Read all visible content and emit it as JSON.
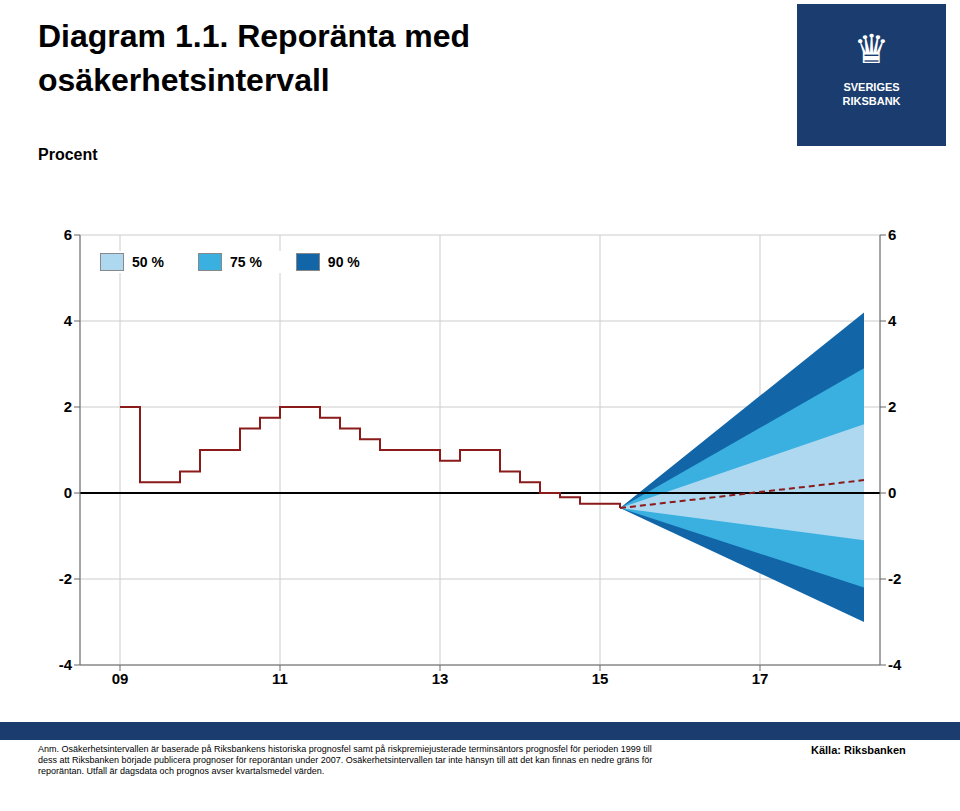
{
  "chart_data": {
    "type": "fan",
    "title": "Diagram 1.1. Reporänta med\nosäkerhetsintervall",
    "subtitle": "Procent",
    "xlim": [
      2008.5,
      2018.5
    ],
    "xticks": [
      {
        "value": 2009,
        "label": "09"
      },
      {
        "value": 2011,
        "label": "11"
      },
      {
        "value": 2013,
        "label": "13"
      },
      {
        "value": 2015,
        "label": "15"
      },
      {
        "value": 2017,
        "label": "17"
      }
    ],
    "ylim": [
      -4,
      6
    ],
    "yticks": [
      -4,
      -2,
      0,
      2,
      4,
      6
    ],
    "y2lim": [
      -4,
      6
    ],
    "y2ticks": [
      -4,
      -2,
      0,
      2,
      4,
      6
    ],
    "grid": true,
    "grid_color": "#cccccc",
    "legend": "upper left",
    "reference_line": {
      "y": 0,
      "color": "#000000"
    },
    "series": [
      {
        "type": "step",
        "color": "#8b1a1a",
        "x": [
          2009.0,
          2009.25,
          2009.5,
          2009.75,
          2010.0,
          2010.25,
          2010.5,
          2010.75,
          2011.0,
          2011.25,
          2011.5,
          2011.75,
          2012.0,
          2012.25,
          2012.5,
          2012.75,
          2013.0,
          2013.25,
          2013.5,
          2013.75,
          2014.0,
          2014.25,
          2014.5,
          2014.75,
          2015.0,
          2015.25
        ],
        "values": [
          2.0,
          0.25,
          0.25,
          0.5,
          1.0,
          1.0,
          1.5,
          1.75,
          2.0,
          2.0,
          1.75,
          1.5,
          1.25,
          1.0,
          1.0,
          1.0,
          0.75,
          1.0,
          1.0,
          0.5,
          0.25,
          0.0,
          -0.1,
          -0.25,
          -0.25,
          -0.35
        ]
      },
      {
        "type": "line",
        "line_style": "dashed",
        "color": "#8b1a1a",
        "x": [
          2015.25,
          2018.3
        ],
        "values": [
          -0.35,
          0.3
        ]
      }
    ],
    "bands": [
      {
        "name": "90 %",
        "color": "#1266a8",
        "x": [
          2015.25,
          2018.3
        ],
        "lower": [
          -0.35,
          -3.0
        ],
        "upper": [
          -0.35,
          4.2
        ]
      },
      {
        "name": "75 %",
        "color": "#3ab0e0",
        "x": [
          2015.25,
          2018.3
        ],
        "lower": [
          -0.35,
          -2.2
        ],
        "upper": [
          -0.35,
          2.9
        ]
      },
      {
        "name": "50 %",
        "color": "#add8f0",
        "x": [
          2015.25,
          2018.3
        ],
        "lower": [
          -0.35,
          -1.1
        ],
        "upper": [
          -0.35,
          1.6
        ]
      }
    ],
    "logo_symbol": "♛",
    "logo_text": "SVERIGES\nRIKSBANK",
    "note": "Anm. Osäkerhetsintervallen är baserade på Riksbankens historiska prognosfel samt på riskpremiejusterade terminsäntors prognosfel för perioden 1999 till\ndess att Riksbanken började publicera prognoser för reporäntan under 2007. Osäkerhetsintervallen tar inte hänsyn till att det kan finnas en nedre gräns för\nreporäntan. Utfall är dagsdata och prognos avser kvartalsmedel värden.",
    "source": "Källa: Riksbanken",
    "header_bar_color": "#1a3c6e",
    "background_color": "#ffffff"
  }
}
